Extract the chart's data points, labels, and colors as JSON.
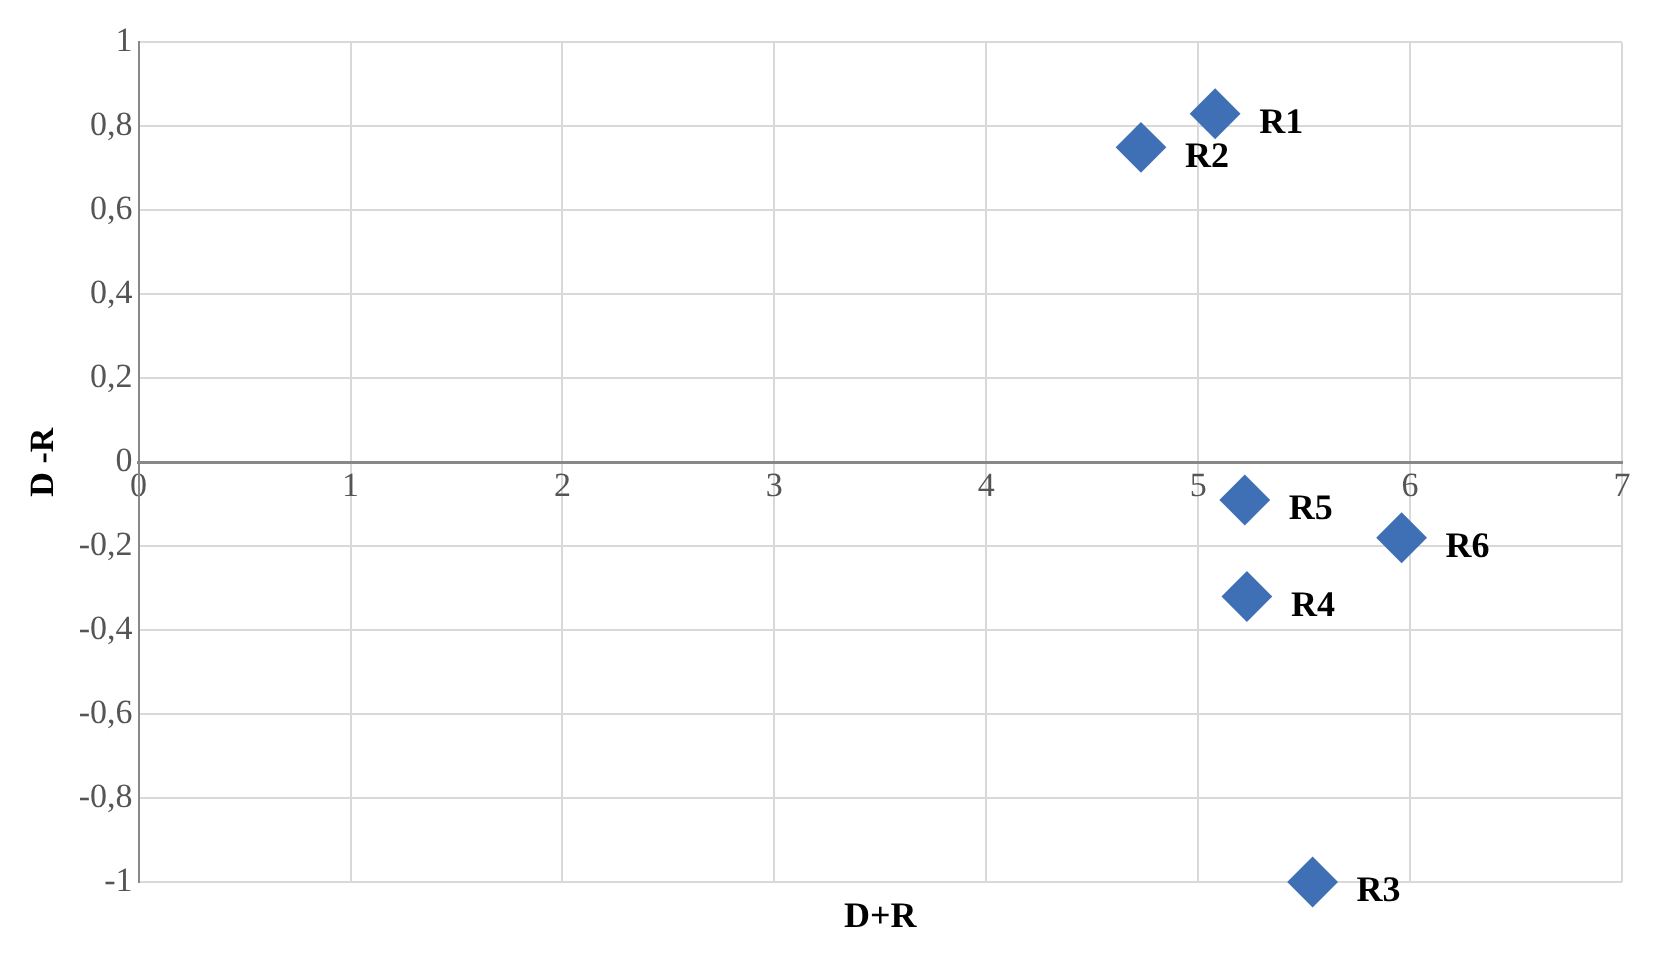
{
  "chart_data": {
    "type": "scatter",
    "xlabel": "D+R",
    "ylabel": "D -R",
    "x": [
      5.08,
      4.73,
      5.54,
      5.23,
      5.22,
      5.96
    ],
    "series": [
      {
        "color": "#3f6fb5",
        "values": [
          0.83,
          0.75,
          -1.0,
          -0.32,
          -0.09,
          -0.18
        ]
      }
    ],
    "xlim": [
      0,
      7
    ],
    "xticks": [
      0,
      1,
      2,
      3,
      4,
      5,
      6,
      7
    ],
    "ylim": [
      -1,
      1
    ],
    "yticks": [
      {
        "value": -1,
        "label": "-1"
      },
      {
        "value": -0.8,
        "label": "-0,8"
      },
      {
        "value": -0.6,
        "label": "-0,6"
      },
      {
        "value": -0.4,
        "label": "-0,4"
      },
      {
        "value": -0.2,
        "label": "-0,2"
      },
      {
        "value": 0,
        "label": "0"
      },
      {
        "value": 0.2,
        "label": "0,2"
      },
      {
        "value": 0.4,
        "label": "0,4"
      },
      {
        "value": 0.6,
        "label": "0,6"
      },
      {
        "value": 0.8,
        "label": "0,8"
      },
      {
        "value": 1,
        "label": "1"
      }
    ],
    "annotations": [
      {
        "text": "R1",
        "x": 5.08,
        "y": 0.83
      },
      {
        "text": "R2",
        "x": 4.73,
        "y": 0.75
      },
      {
        "text": "R3",
        "x": 5.54,
        "y": -1.0
      },
      {
        "text": "R4",
        "x": 5.23,
        "y": -0.32
      },
      {
        "text": "R5",
        "x": 5.22,
        "y": -0.09
      },
      {
        "text": "R6",
        "x": 5.96,
        "y": -0.18
      }
    ],
    "grid": true,
    "legend": false,
    "marker": "diamond"
  }
}
